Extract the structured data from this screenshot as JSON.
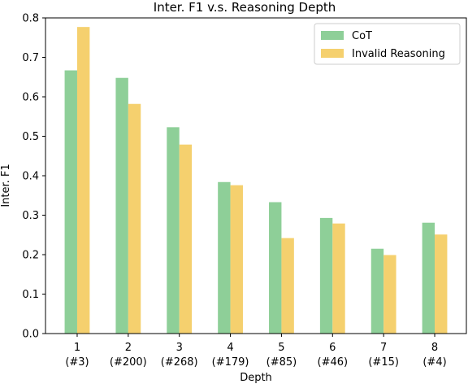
{
  "chart_data": {
    "type": "bar",
    "title": "Inter. F1 v.s. Reasoning Depth",
    "xlabel": "Depth",
    "ylabel": "Inter. F1",
    "categories": [
      "1",
      "2",
      "3",
      "4",
      "5",
      "6",
      "7",
      "8"
    ],
    "category_counts": [
      "(#3)",
      "(#200)",
      "(#268)",
      "(#179)",
      "(#85)",
      "(#46)",
      "(#15)",
      "(#4)"
    ],
    "ylim": [
      0,
      0.8
    ],
    "yticks": [
      "0.0",
      "0.1",
      "0.2",
      "0.3",
      "0.4",
      "0.5",
      "0.6",
      "0.7",
      "0.8"
    ],
    "grid": false,
    "legend_position": "top-right",
    "series": [
      {
        "name": "CoT",
        "color": "#8ecf98",
        "values": [
          0.667,
          0.648,
          0.523,
          0.384,
          0.333,
          0.293,
          0.215,
          0.281
        ]
      },
      {
        "name": "Invalid Reasoning",
        "color": "#f5d06e",
        "values": [
          0.777,
          0.582,
          0.479,
          0.376,
          0.242,
          0.279,
          0.199,
          0.251
        ]
      }
    ]
  }
}
